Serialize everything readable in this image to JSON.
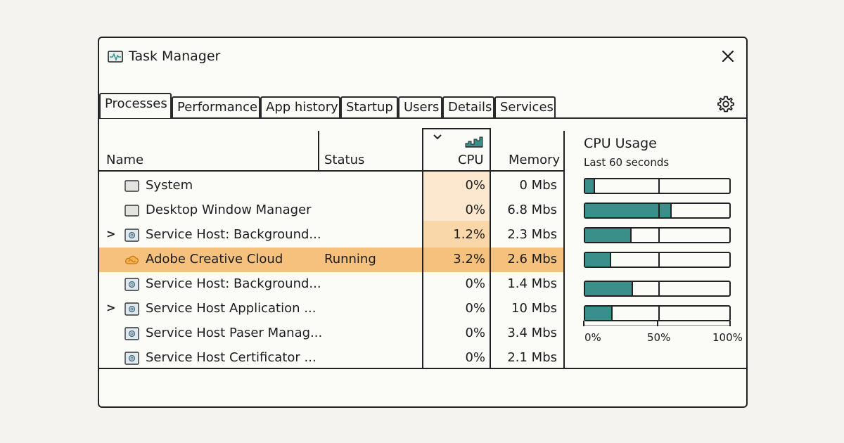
{
  "window": {
    "title": "Task Manager",
    "app_icon": "activity-monitor-icon",
    "close_icon": "close-icon",
    "settings_icon": "gear-icon"
  },
  "tabs": [
    {
      "label": "Processes",
      "active": true
    },
    {
      "label": "Performance",
      "active": false
    },
    {
      "label": "App history",
      "active": false
    },
    {
      "label": "Startup",
      "active": false
    },
    {
      "label": "Users",
      "active": false
    },
    {
      "label": "Details",
      "active": false
    },
    {
      "label": "Services",
      "active": false
    }
  ],
  "columns": {
    "name": "Name",
    "status": "Status",
    "cpu": "CPU",
    "memory": "Memory"
  },
  "processes": [
    {
      "name": "System",
      "status": "",
      "cpu": "0%",
      "memory": "0 Mbs",
      "expandable": false,
      "icon": "window-icon"
    },
    {
      "name": "Desktop Window Manager",
      "status": "",
      "cpu": "0%",
      "memory": "6.8 Mbs",
      "expandable": false,
      "icon": "window-icon"
    },
    {
      "name": "Service Host: Background...",
      "status": "",
      "cpu": "1.2%",
      "memory": "2.3 Mbs",
      "expandable": true,
      "icon": "gear-window-icon"
    },
    {
      "name": "Adobe Creative Cloud",
      "status": "Running",
      "cpu": "3.2%",
      "memory": "2.6 Mbs",
      "expandable": false,
      "icon": "creative-cloud-icon",
      "selected": true
    },
    {
      "name": "Service Host: Background...",
      "status": "",
      "cpu": "0%",
      "memory": "1.4 Mbs",
      "expandable": false,
      "icon": "gear-window-icon"
    },
    {
      "name": "Service Host Application ...",
      "status": "",
      "cpu": "0%",
      "memory": "10 Mbs",
      "expandable": true,
      "icon": "gear-window-icon"
    },
    {
      "name": "Service Host Paser Manag...",
      "status": "",
      "cpu": "0%",
      "memory": "3.4 Mbs",
      "expandable": false,
      "icon": "gear-window-icon"
    },
    {
      "name": "Service Host Certificator ...",
      "status": "",
      "cpu": "0%",
      "memory": "2.1 Mbs",
      "expandable": false,
      "icon": "gear-window-icon"
    }
  ],
  "cpu_panel": {
    "title": "CPU Usage",
    "subtitle": "Last 60 seconds",
    "bars_percent": [
      7,
      60,
      32,
      18,
      33,
      19
    ],
    "axis": [
      "0%",
      "50%",
      "100%"
    ]
  },
  "colors": {
    "accent": "#3b8f8a",
    "selection": "#f6c07d",
    "cpu_column": "#fce8ce"
  }
}
